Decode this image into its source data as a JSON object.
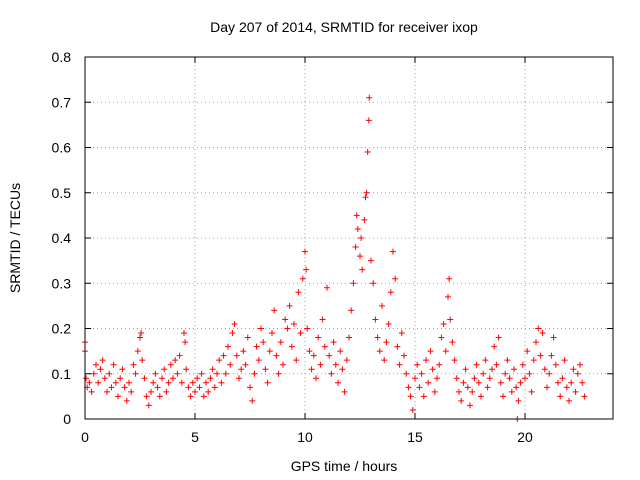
{
  "chart_data": {
    "type": "scatter",
    "title": "Day 207 of 2014, SRMTID for receiver ixop",
    "xlabel": "GPS time / hours",
    "ylabel": "SRMTID / TECUs",
    "xlim": [
      0,
      24
    ],
    "ylim": [
      0,
      0.8
    ],
    "xticks": [
      0,
      5,
      10,
      15,
      20
    ],
    "yticks": [
      0,
      0.1,
      0.2,
      0.3,
      0.4,
      0.5,
      0.6,
      0.7,
      0.8
    ],
    "xtick_labels": [
      "0",
      "5",
      "10",
      "15",
      "20"
    ],
    "ytick_labels": [
      "0",
      "0.1",
      "0.2",
      "0.3",
      "0.4",
      "0.5",
      "0.6",
      "0.7",
      "0.8"
    ],
    "grid": true,
    "marker": "+",
    "color": "#ff0000",
    "series": [
      {
        "name": "SRMTID",
        "points": [
          [
            0.0,
            0.17
          ],
          [
            0.0,
            0.15
          ],
          [
            0.05,
            0.09
          ],
          [
            0.1,
            0.07
          ],
          [
            0.2,
            0.08
          ],
          [
            0.3,
            0.06
          ],
          [
            0.4,
            0.1
          ],
          [
            0.5,
            0.12
          ],
          [
            0.6,
            0.08
          ],
          [
            0.7,
            0.11
          ],
          [
            0.8,
            0.13
          ],
          [
            0.9,
            0.09
          ],
          [
            1.0,
            0.06
          ],
          [
            1.1,
            0.1
          ],
          [
            1.2,
            0.07
          ],
          [
            1.3,
            0.12
          ],
          [
            1.4,
            0.08
          ],
          [
            1.5,
            0.05
          ],
          [
            1.6,
            0.09
          ],
          [
            1.7,
            0.11
          ],
          [
            1.8,
            0.07
          ],
          [
            1.9,
            0.04
          ],
          [
            2.0,
            0.08
          ],
          [
            2.1,
            0.06
          ],
          [
            2.2,
            0.12
          ],
          [
            2.3,
            0.1
          ],
          [
            2.4,
            0.15
          ],
          [
            2.5,
            0.18
          ],
          [
            2.55,
            0.19
          ],
          [
            2.6,
            0.13
          ],
          [
            2.7,
            0.09
          ],
          [
            2.8,
            0.05
          ],
          [
            2.9,
            0.03
          ],
          [
            3.0,
            0.06
          ],
          [
            3.1,
            0.08
          ],
          [
            3.2,
            0.1
          ],
          [
            3.3,
            0.07
          ],
          [
            3.4,
            0.05
          ],
          [
            3.5,
            0.09
          ],
          [
            3.6,
            0.11
          ],
          [
            3.7,
            0.06
          ],
          [
            3.8,
            0.08
          ],
          [
            3.9,
            0.12
          ],
          [
            4.0,
            0.09
          ],
          [
            4.1,
            0.13
          ],
          [
            4.2,
            0.1
          ],
          [
            4.3,
            0.14
          ],
          [
            4.4,
            0.08
          ],
          [
            4.5,
            0.19
          ],
          [
            4.55,
            0.17
          ],
          [
            4.6,
            0.11
          ],
          [
            4.7,
            0.07
          ],
          [
            4.8,
            0.05
          ],
          [
            4.9,
            0.08
          ],
          [
            5.0,
            0.06
          ],
          [
            5.1,
            0.09
          ],
          [
            5.2,
            0.07
          ],
          [
            5.3,
            0.1
          ],
          [
            5.4,
            0.05
          ],
          [
            5.5,
            0.08
          ],
          [
            5.6,
            0.06
          ],
          [
            5.7,
            0.09
          ],
          [
            5.8,
            0.11
          ],
          [
            5.9,
            0.07
          ],
          [
            6.0,
            0.1
          ],
          [
            6.1,
            0.13
          ],
          [
            6.2,
            0.08
          ],
          [
            6.3,
            0.14
          ],
          [
            6.4,
            0.1
          ],
          [
            6.5,
            0.16
          ],
          [
            6.6,
            0.12
          ],
          [
            6.7,
            0.19
          ],
          [
            6.8,
            0.21
          ],
          [
            6.9,
            0.14
          ],
          [
            7.0,
            0.09
          ],
          [
            7.1,
            0.11
          ],
          [
            7.2,
            0.15
          ],
          [
            7.3,
            0.12
          ],
          [
            7.4,
            0.18
          ],
          [
            7.5,
            0.07
          ],
          [
            7.6,
            0.04
          ],
          [
            7.7,
            0.1
          ],
          [
            7.8,
            0.16
          ],
          [
            7.9,
            0.13
          ],
          [
            8.0,
            0.2
          ],
          [
            8.1,
            0.17
          ],
          [
            8.2,
            0.11
          ],
          [
            8.3,
            0.08
          ],
          [
            8.4,
            0.15
          ],
          [
            8.5,
            0.19
          ],
          [
            8.6,
            0.24
          ],
          [
            8.7,
            0.14
          ],
          [
            8.8,
            0.1
          ],
          [
            8.9,
            0.17
          ],
          [
            9.0,
            0.12
          ],
          [
            9.1,
            0.22
          ],
          [
            9.2,
            0.2
          ],
          [
            9.3,
            0.25
          ],
          [
            9.4,
            0.16
          ],
          [
            9.5,
            0.21
          ],
          [
            9.6,
            0.13
          ],
          [
            9.7,
            0.28
          ],
          [
            9.8,
            0.19
          ],
          [
            9.9,
            0.31
          ],
          [
            10.0,
            0.37
          ],
          [
            10.05,
            0.33
          ],
          [
            10.1,
            0.2
          ],
          [
            10.2,
            0.15
          ],
          [
            10.3,
            0.11
          ],
          [
            10.4,
            0.14
          ],
          [
            10.5,
            0.09
          ],
          [
            10.6,
            0.18
          ],
          [
            10.7,
            0.12
          ],
          [
            10.8,
            0.22
          ],
          [
            10.9,
            0.16
          ],
          [
            11.0,
            0.29
          ],
          [
            11.1,
            0.14
          ],
          [
            11.2,
            0.1
          ],
          [
            11.3,
            0.17
          ],
          [
            11.4,
            0.12
          ],
          [
            11.5,
            0.08
          ],
          [
            11.6,
            0.15
          ],
          [
            11.7,
            0.11
          ],
          [
            11.8,
            0.06
          ],
          [
            11.9,
            0.13
          ],
          [
            12.0,
            0.18
          ],
          [
            12.1,
            0.24
          ],
          [
            12.2,
            0.3
          ],
          [
            12.3,
            0.38
          ],
          [
            12.35,
            0.45
          ],
          [
            12.4,
            0.42
          ],
          [
            12.5,
            0.36
          ],
          [
            12.55,
            0.4
          ],
          [
            12.6,
            0.33
          ],
          [
            12.7,
            0.44
          ],
          [
            12.75,
            0.49
          ],
          [
            12.8,
            0.5
          ],
          [
            12.85,
            0.59
          ],
          [
            12.9,
            0.66
          ],
          [
            12.92,
            0.71
          ],
          [
            13.0,
            0.35
          ],
          [
            13.1,
            0.3
          ],
          [
            13.2,
            0.22
          ],
          [
            13.3,
            0.18
          ],
          [
            13.4,
            0.15
          ],
          [
            13.5,
            0.25
          ],
          [
            13.6,
            0.13
          ],
          [
            13.7,
            0.17
          ],
          [
            13.8,
            0.21
          ],
          [
            13.9,
            0.28
          ],
          [
            14.0,
            0.37
          ],
          [
            14.1,
            0.31
          ],
          [
            14.2,
            0.16
          ],
          [
            14.3,
            0.12
          ],
          [
            14.4,
            0.19
          ],
          [
            14.5,
            0.14
          ],
          [
            14.6,
            0.1
          ],
          [
            14.7,
            0.07
          ],
          [
            14.8,
            0.05
          ],
          [
            14.9,
            0.02
          ],
          [
            15.0,
            0.09
          ],
          [
            15.1,
            0.12
          ],
          [
            15.2,
            0.07
          ],
          [
            15.3,
            0.1
          ],
          [
            15.4,
            0.05
          ],
          [
            15.5,
            0.13
          ],
          [
            15.6,
            0.08
          ],
          [
            15.7,
            0.15
          ],
          [
            15.8,
            0.11
          ],
          [
            15.9,
            0.06
          ],
          [
            16.0,
            0.09
          ],
          [
            16.1,
            0.12
          ],
          [
            16.2,
            0.18
          ],
          [
            16.3,
            0.21
          ],
          [
            16.4,
            0.15
          ],
          [
            16.5,
            0.27
          ],
          [
            16.55,
            0.31
          ],
          [
            16.6,
            0.22
          ],
          [
            16.7,
            0.17
          ],
          [
            16.8,
            0.13
          ],
          [
            16.9,
            0.09
          ],
          [
            17.0,
            0.06
          ],
          [
            17.1,
            0.04
          ],
          [
            17.2,
            0.08
          ],
          [
            17.3,
            0.11
          ],
          [
            17.4,
            0.07
          ],
          [
            17.5,
            0.03
          ],
          [
            17.6,
            0.06
          ],
          [
            17.7,
            0.09
          ],
          [
            17.8,
            0.12
          ],
          [
            17.9,
            0.08
          ],
          [
            18.0,
            0.05
          ],
          [
            18.1,
            0.1
          ],
          [
            18.2,
            0.13
          ],
          [
            18.3,
            0.07
          ],
          [
            18.4,
            0.09
          ],
          [
            18.5,
            0.11
          ],
          [
            18.6,
            0.16
          ],
          [
            18.7,
            0.12
          ],
          [
            18.8,
            0.18
          ],
          [
            18.9,
            0.08
          ],
          [
            19.0,
            0.05
          ],
          [
            19.1,
            0.1
          ],
          [
            19.2,
            0.13
          ],
          [
            19.3,
            0.09
          ],
          [
            19.4,
            0.06
          ],
          [
            19.5,
            0.11
          ],
          [
            19.6,
            0.07
          ],
          [
            19.65,
            0.0
          ],
          [
            19.7,
            0.04
          ],
          [
            19.8,
            0.08
          ],
          [
            19.9,
            0.12
          ],
          [
            20.0,
            0.09
          ],
          [
            20.1,
            0.15
          ],
          [
            20.2,
            0.1
          ],
          [
            20.3,
            0.06
          ],
          [
            20.4,
            0.13
          ],
          [
            20.5,
            0.17
          ],
          [
            20.6,
            0.2
          ],
          [
            20.7,
            0.14
          ],
          [
            20.8,
            0.19
          ],
          [
            20.9,
            0.11
          ],
          [
            21.0,
            0.07
          ],
          [
            21.1,
            0.1
          ],
          [
            21.2,
            0.14
          ],
          [
            21.3,
            0.18
          ],
          [
            21.4,
            0.12
          ],
          [
            21.5,
            0.08
          ],
          [
            21.6,
            0.05
          ],
          [
            21.7,
            0.09
          ],
          [
            21.8,
            0.13
          ],
          [
            21.9,
            0.07
          ],
          [
            22.0,
            0.04
          ],
          [
            22.1,
            0.08
          ],
          [
            22.2,
            0.11
          ],
          [
            22.3,
            0.06
          ],
          [
            22.4,
            0.1
          ],
          [
            22.5,
            0.12
          ],
          [
            22.6,
            0.08
          ],
          [
            22.7,
            0.05
          ]
        ]
      }
    ]
  }
}
